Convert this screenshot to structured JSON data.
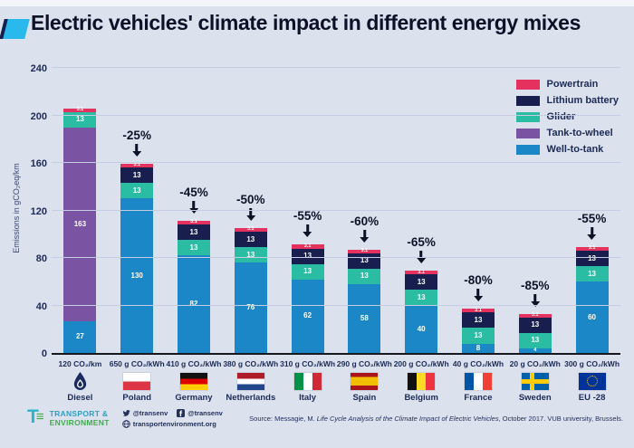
{
  "title": "Electric vehicles' climate impact in different energy mixes",
  "ylabel": "Emissions in gCO₂eq/km",
  "accent_color": "#2ab9ec",
  "chart_data": {
    "type": "bar",
    "stacked": true,
    "title": "Electric vehicles' climate impact in different energy mixes",
    "ylabel": "Emissions in gCO₂eq/km",
    "ylim": [
      0,
      240
    ],
    "yticks": [
      0,
      40,
      80,
      120,
      160,
      200,
      240
    ],
    "grid": true,
    "legend_position": "top-right",
    "legend": [
      {
        "label": "Powertrain",
        "color": "#e4315e"
      },
      {
        "label": "Lithium battery",
        "color": "#181f4e"
      },
      {
        "label": "Glider",
        "color": "#2bbda4"
      },
      {
        "label": "Tank-to-wheel",
        "color": "#7a54a3"
      },
      {
        "label": "Well-to-tank",
        "color": "#1b87c6"
      }
    ],
    "categories": [
      "Diesel",
      "Poland",
      "Germany",
      "Netherlands",
      "Italy",
      "Spain",
      "Belgium",
      "France",
      "Sweden",
      "EU -28"
    ],
    "bars": [
      {
        "country": "Diesel",
        "intensity": "120 CO₂/km",
        "flag": "diesel",
        "annotation": null,
        "segments": [
          {
            "name": "Well-to-tank",
            "value": 27,
            "label": "27"
          },
          {
            "name": "Tank-to-wheel",
            "value": 163,
            "label": "163"
          },
          {
            "name": "Glider",
            "value": 13,
            "label": "13"
          },
          {
            "name": "Powertrain",
            "value": 3.1,
            "label": "3.1"
          }
        ]
      },
      {
        "country": "Poland",
        "intensity": "650 g CO₂/kWh",
        "flag": "poland",
        "annotation": "-25%",
        "segments": [
          {
            "name": "Well-to-tank",
            "value": 130,
            "label": "130"
          },
          {
            "name": "Glider",
            "value": 13,
            "label": "13"
          },
          {
            "name": "Lithium battery",
            "value": 13,
            "label": "13"
          },
          {
            "name": "Powertrain",
            "value": 3.1,
            "label": "3.1"
          }
        ]
      },
      {
        "country": "Germany",
        "intensity": "410 g CO₂/kWh",
        "flag": "germany",
        "annotation": "-45%",
        "segments": [
          {
            "name": "Well-to-tank",
            "value": 82,
            "label": "82"
          },
          {
            "name": "Glider",
            "value": 13,
            "label": "13"
          },
          {
            "name": "Lithium battery",
            "value": 13,
            "label": "13"
          },
          {
            "name": "Powertrain",
            "value": 3.1,
            "label": "3.1"
          }
        ]
      },
      {
        "country": "Netherlands",
        "intensity": "380 g CO₂/kWh",
        "flag": "netherlands",
        "annotation": "-50%",
        "segments": [
          {
            "name": "Well-to-tank",
            "value": 76,
            "label": "76"
          },
          {
            "name": "Glider",
            "value": 13,
            "label": "13"
          },
          {
            "name": "Lithium battery",
            "value": 13,
            "label": "13"
          },
          {
            "name": "Powertrain",
            "value": 3.1,
            "label": "3.1"
          }
        ]
      },
      {
        "country": "Italy",
        "intensity": "310 g CO₂/kWh",
        "flag": "italy",
        "annotation": "-55%",
        "segments": [
          {
            "name": "Well-to-tank",
            "value": 62,
            "label": "62"
          },
          {
            "name": "Glider",
            "value": 13,
            "label": "13"
          },
          {
            "name": "Lithium battery",
            "value": 13,
            "label": "13"
          },
          {
            "name": "Powertrain",
            "value": 3.1,
            "label": "3.1"
          }
        ]
      },
      {
        "country": "Spain",
        "intensity": "290 g CO₂/kWh",
        "flag": "spain",
        "annotation": "-60%",
        "segments": [
          {
            "name": "Well-to-tank",
            "value": 58,
            "label": "58"
          },
          {
            "name": "Glider",
            "value": 13,
            "label": "13"
          },
          {
            "name": "Lithium battery",
            "value": 13,
            "label": "13"
          },
          {
            "name": "Powertrain",
            "value": 3.1,
            "label": "3.1"
          }
        ]
      },
      {
        "country": "Belgium",
        "intensity": "200 g CO₂/kWh",
        "flag": "belgium",
        "annotation": "-65%",
        "segments": [
          {
            "name": "Well-to-tank",
            "value": 40,
            "label": "40"
          },
          {
            "name": "Glider",
            "value": 13,
            "label": "13"
          },
          {
            "name": "Lithium battery",
            "value": 13,
            "label": "13"
          },
          {
            "name": "Powertrain",
            "value": 3.1,
            "label": "3.1"
          }
        ]
      },
      {
        "country": "France",
        "intensity": "40 g CO₂/kWh",
        "flag": "france",
        "annotation": "-80%",
        "segments": [
          {
            "name": "Well-to-tank",
            "value": 8,
            "label": "8"
          },
          {
            "name": "Glider",
            "value": 13,
            "label": "13"
          },
          {
            "name": "Lithium battery",
            "value": 13,
            "label": "13"
          },
          {
            "name": "Powertrain",
            "value": 3.1,
            "label": "3.1"
          }
        ]
      },
      {
        "country": "Sweden",
        "intensity": "20 g CO₂/kWh",
        "flag": "sweden",
        "annotation": "-85%",
        "segments": [
          {
            "name": "Well-to-tank",
            "value": 4,
            "label": "4"
          },
          {
            "name": "Glider",
            "value": 13,
            "label": "13"
          },
          {
            "name": "Lithium battery",
            "value": 13,
            "label": "13"
          },
          {
            "name": "Powertrain",
            "value": 3.1,
            "label": "3.1"
          }
        ]
      },
      {
        "country": "EU -28",
        "intensity": "300 g CO₂/kWh",
        "flag": "eu",
        "annotation": "-55%",
        "segments": [
          {
            "name": "Well-to-tank",
            "value": 60,
            "label": "60"
          },
          {
            "name": "Glider",
            "value": 13,
            "label": "13"
          },
          {
            "name": "Lithium battery",
            "value": 13,
            "label": "13"
          },
          {
            "name": "Powertrain",
            "value": 3.1,
            "label": "3.1"
          }
        ]
      }
    ]
  },
  "footer": {
    "logo_line1": "TRANSPORT &",
    "logo_line2": "ENVIRONMENT",
    "twitter": "@transenv",
    "facebook": "@transenv",
    "website": "transportenvironment.org",
    "source_prefix": "Source: Messagie, M. ",
    "source_title": "Life Cycle Analysis of the Climate Impact of Electric Vehicles",
    "source_suffix": ", October 2017. VUB university, Brussels."
  }
}
